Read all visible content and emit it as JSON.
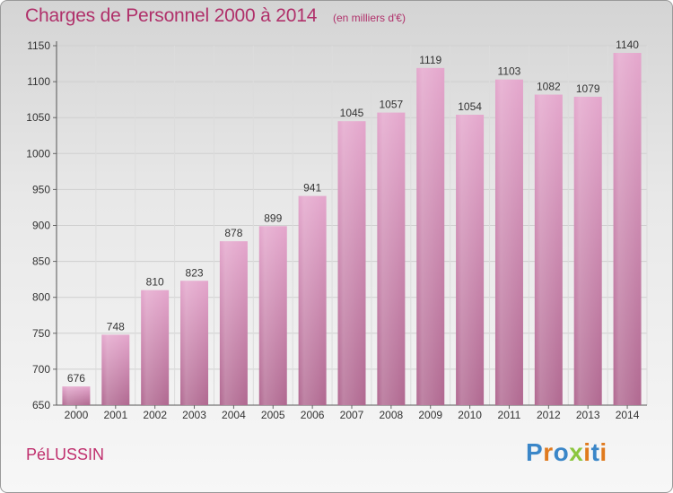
{
  "title": "Charges de Personnel 2000 à 2014",
  "subtitle": "(en milliers d'€)",
  "commune": "PéLUSSIN",
  "logo": {
    "letters": [
      "P",
      "r",
      "o",
      "x",
      "i",
      "t",
      "i"
    ],
    "colors": [
      "#3a86c8",
      "#e07a1e",
      "#3a86c8",
      "#8cc63f",
      "#e07a1e",
      "#3a86c8",
      "#e07a1e"
    ]
  },
  "colors": {
    "bar_top": "#e4a6cc",
    "bar_bottom": "#b06890",
    "title": "#b0306a"
  },
  "chart_data": {
    "type": "bar",
    "categories": [
      "2000",
      "2001",
      "2002",
      "2003",
      "2004",
      "2005",
      "2006",
      "2007",
      "2008",
      "2009",
      "2010",
      "2011",
      "2012",
      "2013",
      "2014"
    ],
    "values": [
      676,
      748,
      810,
      823,
      878,
      899,
      941,
      1045,
      1057,
      1119,
      1054,
      1103,
      1082,
      1079,
      1140
    ],
    "yticks": [
      650,
      700,
      750,
      800,
      850,
      900,
      950,
      1000,
      1050,
      1100,
      1150
    ],
    "ylim": [
      650,
      1150
    ],
    "grid": true,
    "title": "Charges de Personnel 2000 à 2014",
    "xlabel": "",
    "ylabel": ""
  }
}
